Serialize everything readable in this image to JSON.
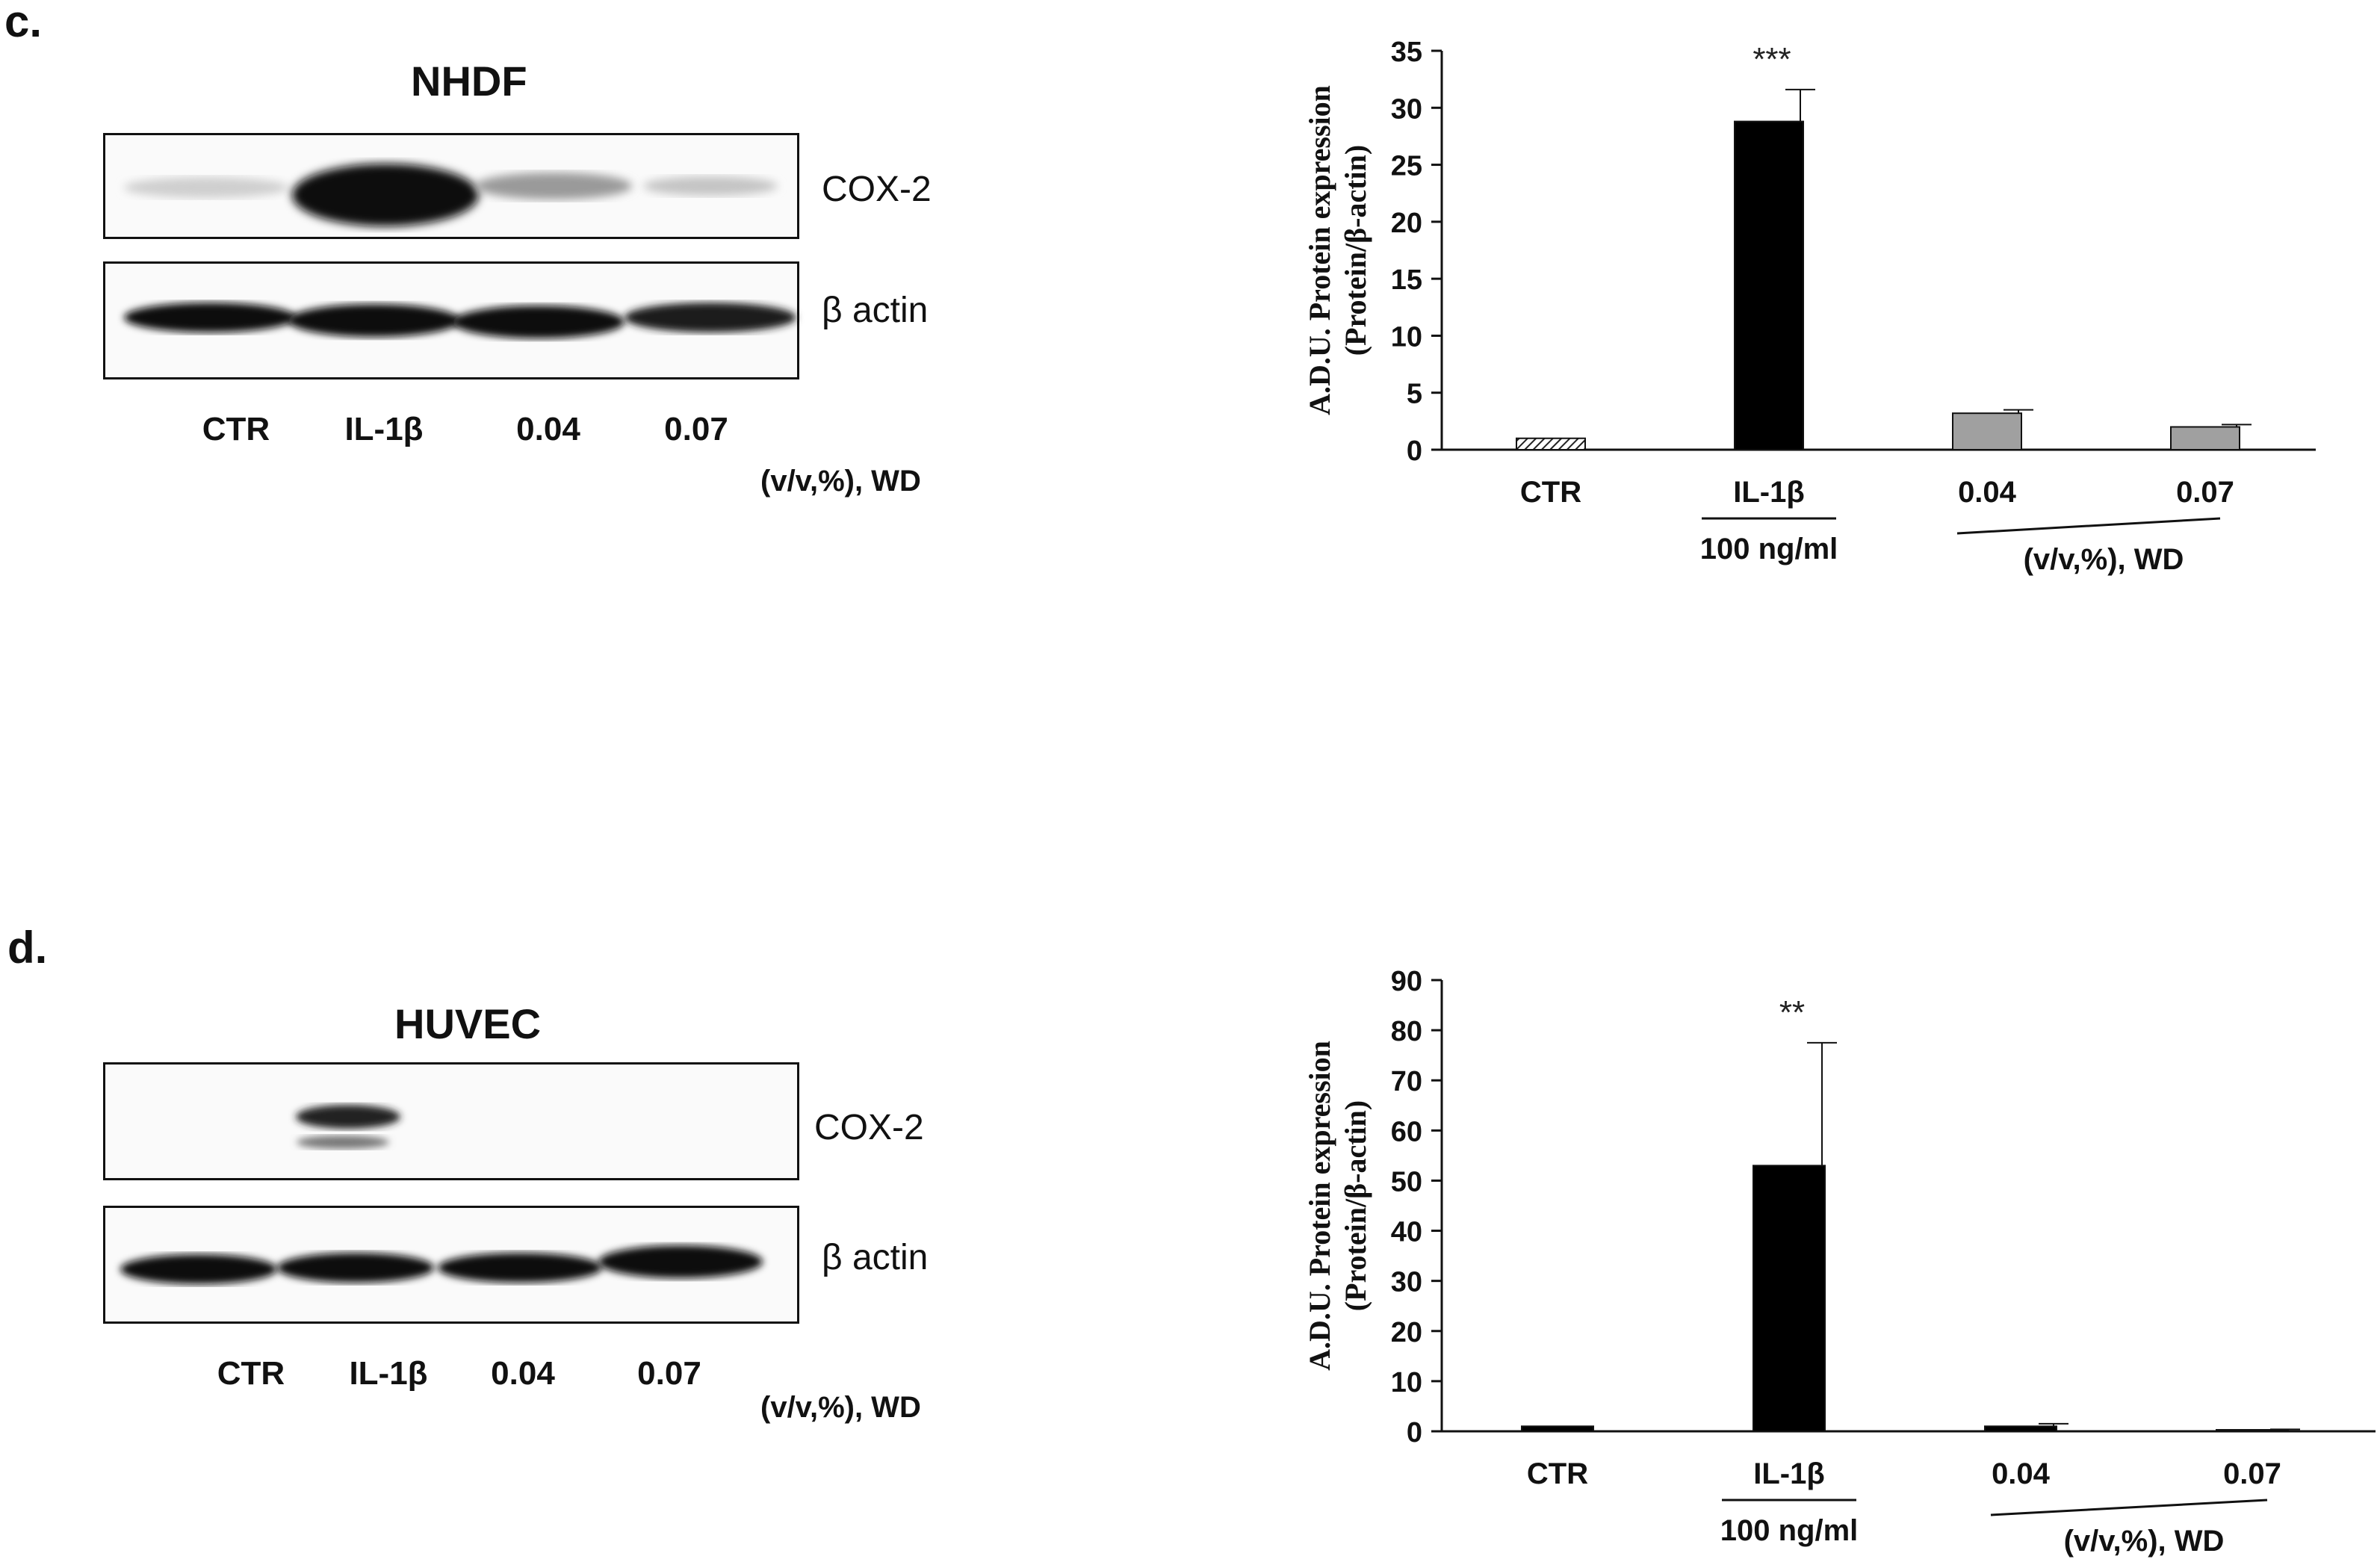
{
  "panels": [
    {
      "letter": "c.",
      "blot": {
        "title": "NHDF",
        "bands": [
          "COX-2",
          "β actin"
        ],
        "lanes": [
          "CTR",
          "IL-1β",
          "0.04",
          "0.07"
        ],
        "unit_label": "(v/v,%), WD"
      },
      "chart_data": {
        "type": "bar",
        "categories": [
          "CTR",
          "IL-1β",
          "0.04",
          "0.07"
        ],
        "values": [
          1.0,
          28.8,
          3.2,
          2.0
        ],
        "errors": [
          0,
          2.8,
          0.3,
          0.2
        ],
        "significance": [
          "",
          "***",
          "",
          ""
        ],
        "bar_styles": [
          "hatched",
          "black",
          "gray",
          "gray"
        ],
        "ylabel_line1": "A.D.U. Protein expression",
        "ylabel_line2": "(Protein/β-actin)",
        "ylim": [
          0,
          35
        ],
        "yticks": [
          0,
          5,
          10,
          15,
          20,
          25,
          30,
          35
        ],
        "group_labels": {
          "il1b_dose": "100 ng/ml",
          "wd_unit": "(v/v,%), WD"
        }
      }
    },
    {
      "letter": "d.",
      "blot": {
        "title": "HUVEC",
        "bands": [
          "COX-2",
          "β actin"
        ],
        "lanes": [
          "CTR",
          "IL-1β",
          "0.04",
          "0.07"
        ],
        "unit_label": "(v/v,%), WD"
      },
      "chart_data": {
        "type": "bar",
        "categories": [
          "CTR",
          "IL-1β",
          "0.04",
          "0.07"
        ],
        "values": [
          1.0,
          53.0,
          1.0,
          0.3
        ],
        "errors": [
          0,
          24.5,
          0.5,
          0.1
        ],
        "significance": [
          "",
          "**",
          "",
          ""
        ],
        "bar_styles": [
          "black",
          "black",
          "black",
          "black"
        ],
        "ylabel_line1": "A.D.U. Protein expression",
        "ylabel_line2": "(Protein/β-actin)",
        "ylim": [
          0,
          90
        ],
        "yticks": [
          0,
          10,
          20,
          30,
          40,
          50,
          60,
          70,
          80,
          90
        ],
        "group_labels": {
          "il1b_dose": "100 ng/ml",
          "wd_unit": "(v/v,%), WD"
        }
      }
    }
  ]
}
